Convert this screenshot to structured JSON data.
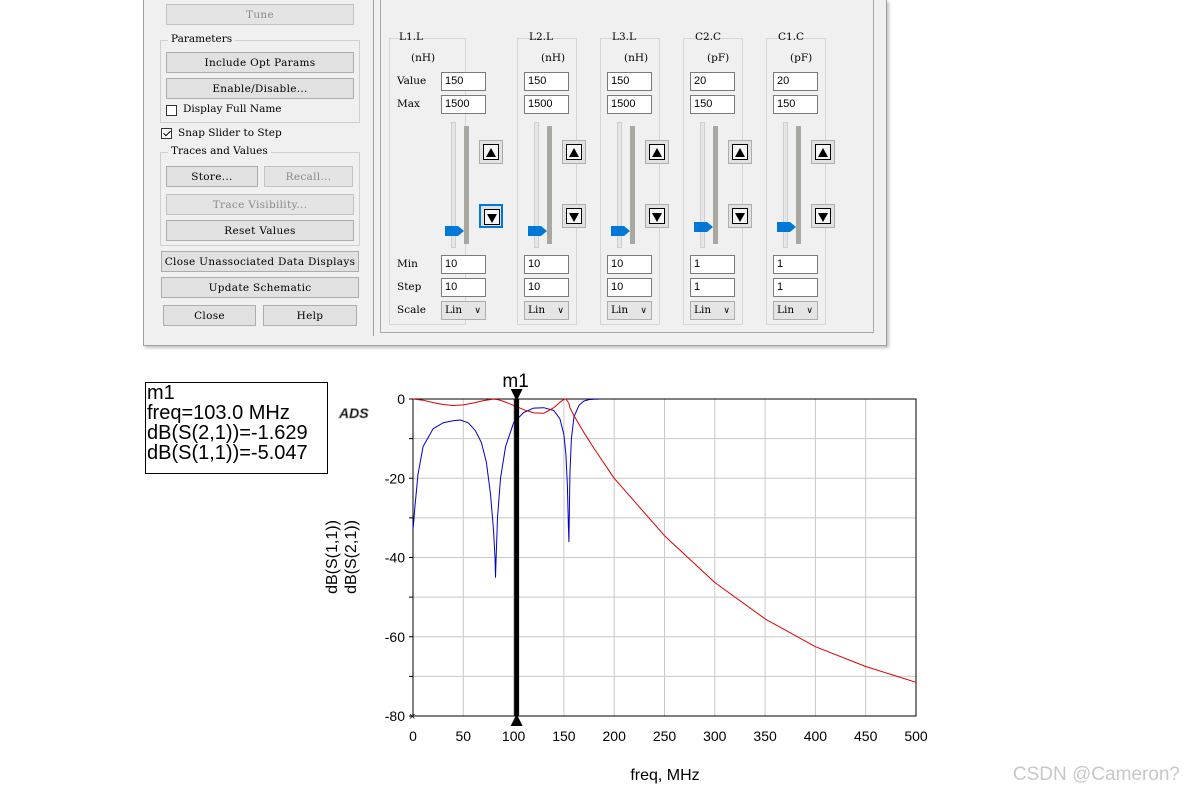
{
  "dialog": {
    "tune_label": "Tune",
    "parameters_title": "Parameters",
    "include_opt_params_label": "Include Opt Params",
    "enable_disable_label": "Enable/Disable...",
    "display_full_name_label": "Display Full Name",
    "display_full_name_checked": false,
    "snap_slider_label": "Snap Slider to Step",
    "snap_slider_checked": true,
    "traces_values_title": "Traces and Values",
    "store_label": "Store...",
    "recall_label": "Recall...",
    "trace_visibility_label": "Trace Visibility...",
    "reset_values_label": "Reset Values",
    "close_unassociated_label": "Close Unassociated Data Displays",
    "update_schematic_label": "Update Schematic",
    "close_label": "Close",
    "help_label": "Help",
    "row_labels": {
      "value": "Value",
      "max": "Max",
      "min": "Min",
      "step": "Step",
      "scale": "Scale"
    },
    "params": [
      {
        "name": "L1.L",
        "unit": "(nH)",
        "value": "150",
        "max": "1500",
        "min": "10",
        "step": "10",
        "scale": "Lin"
      },
      {
        "name": "L2.L",
        "unit": "(nH)",
        "value": "150",
        "max": "1500",
        "min": "10",
        "step": "10",
        "scale": "Lin"
      },
      {
        "name": "L3.L",
        "unit": "(nH)",
        "value": "150",
        "max": "1500",
        "min": "10",
        "step": "10",
        "scale": "Lin"
      },
      {
        "name": "C2.C",
        "unit": "(pF)",
        "value": "20",
        "max": "150",
        "min": "1",
        "step": "1",
        "scale": "Lin"
      },
      {
        "name": "C1.C",
        "unit": "(pF)",
        "value": "20",
        "max": "150",
        "min": "1",
        "step": "1",
        "scale": "Lin"
      }
    ]
  },
  "marker": {
    "name": "m1",
    "freq_line": "freq=103.0 MHz",
    "s21_line": "dB(S(2,1))=-1.629",
    "s11_line": "dB(S(1,1))=-5.047"
  },
  "ads_logo": "ADS",
  "watermark": "CSDN @Cameron?",
  "colors": {
    "s11": "#0000cc",
    "s21": "#dd0000",
    "grid": "#c8c8c8",
    "marker": "#000000",
    "thumb": "#0078d7"
  },
  "chart_data": {
    "type": "line",
    "xlabel": "freq, MHz",
    "ylabels": [
      "dB(S(1,1))",
      "dB(S(2,1))"
    ],
    "xlim": [
      0,
      500
    ],
    "ylim": [
      -80,
      0
    ],
    "xticks": [
      "0",
      "50",
      "100",
      "150",
      "200",
      "250",
      "300",
      "350",
      "400",
      "450",
      "500"
    ],
    "yticks": [
      "0",
      "-20",
      "-40",
      "-60",
      "-80"
    ],
    "grid": true,
    "marker_x": 103,
    "series": [
      {
        "name": "dB(S(1,1))",
        "color": "#0000cc",
        "x": [
          0,
          2,
          5,
          10,
          20,
          30,
          40,
          47,
          55,
          62,
          68,
          73,
          77,
          80,
          81.5,
          82,
          82.5,
          84,
          87,
          92,
          100,
          110,
          120,
          130,
          140,
          146,
          150,
          152,
          153.5,
          154.5,
          155,
          155.5,
          156,
          157.5,
          160,
          165,
          170,
          175,
          180,
          185
        ],
        "y": [
          -33,
          -27,
          -19,
          -12,
          -7.5,
          -6,
          -5.5,
          -5.3,
          -6,
          -8,
          -11,
          -16,
          -24,
          -33,
          -40,
          -45,
          -41,
          -30,
          -20,
          -12,
          -6,
          -3.4,
          -2.3,
          -2.2,
          -2.9,
          -5,
          -9,
          -14,
          -22,
          -32,
          -36,
          -28,
          -19,
          -10,
          -4.5,
          -1.6,
          -0.5,
          -0.15,
          -0.05,
          -0.02
        ]
      },
      {
        "name": "dB(S(2,1))",
        "color": "#dd0000",
        "x": [
          0,
          10,
          20,
          30,
          40,
          50,
          60,
          70,
          80,
          85,
          90,
          100,
          110,
          120,
          130,
          140,
          146,
          150,
          152,
          155,
          156,
          160,
          170,
          180,
          200,
          250,
          300,
          350,
          400,
          450,
          500
        ],
        "y": [
          0,
          -0.3,
          -0.9,
          -1.4,
          -1.65,
          -1.5,
          -1.0,
          -0.4,
          -0.02,
          -0.2,
          -0.6,
          -1.6,
          -2.7,
          -3.5,
          -3.6,
          -2.2,
          -0.8,
          -0.1,
          0,
          -1.1,
          -2.2,
          -4.2,
          -8.5,
          -12.5,
          -20,
          -34.5,
          -46.3,
          -55.5,
          -62.5,
          -67.5,
          -71.5
        ]
      }
    ]
  }
}
